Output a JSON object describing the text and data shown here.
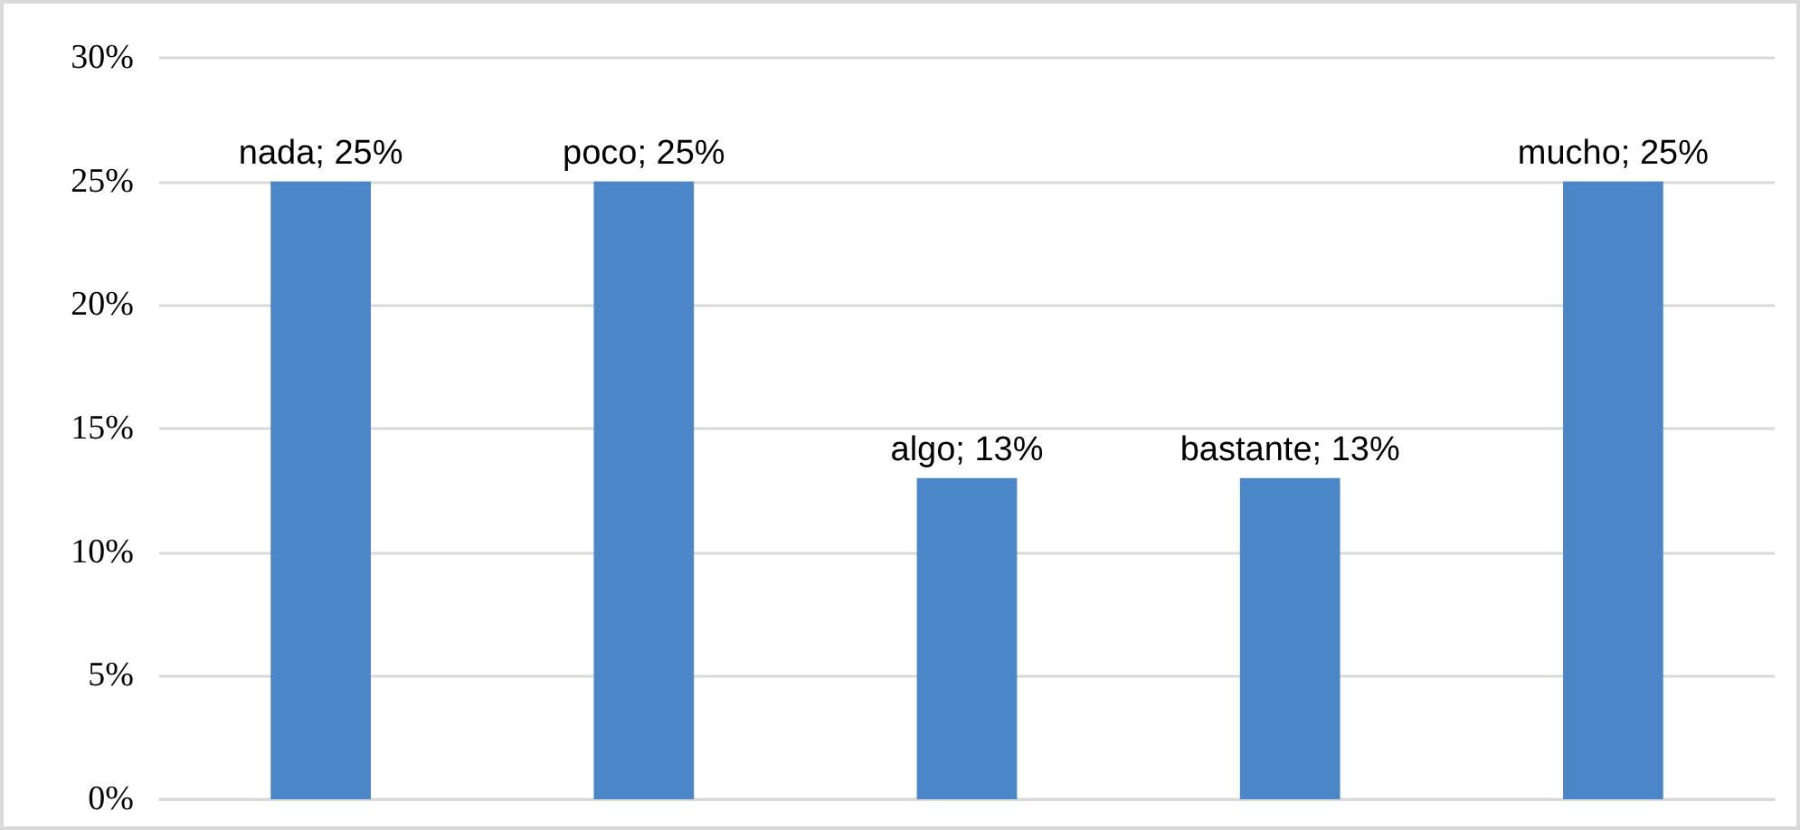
{
  "chart_data": {
    "type": "bar",
    "categories": [
      null,
      null,
      null,
      null,
      null
    ],
    "values": [
      25,
      25,
      13,
      13,
      25
    ],
    "value_labels": [
      "nada; 25%",
      "poco; 25%",
      "algo; 13%",
      "bastante; 13%",
      "mucho; 25%"
    ],
    "color": "#4a86c8",
    "ylim": [
      0,
      30
    ],
    "yticks": [
      {
        "value": 0,
        "label": "0%"
      },
      {
        "value": 5,
        "label": "5%"
      },
      {
        "value": 10,
        "label": "10%"
      },
      {
        "value": 15,
        "label": "15%"
      },
      {
        "value": 20,
        "label": "20%"
      },
      {
        "value": 25,
        "label": "25%"
      },
      {
        "value": 30,
        "label": "30%"
      }
    ],
    "grid": "y"
  }
}
